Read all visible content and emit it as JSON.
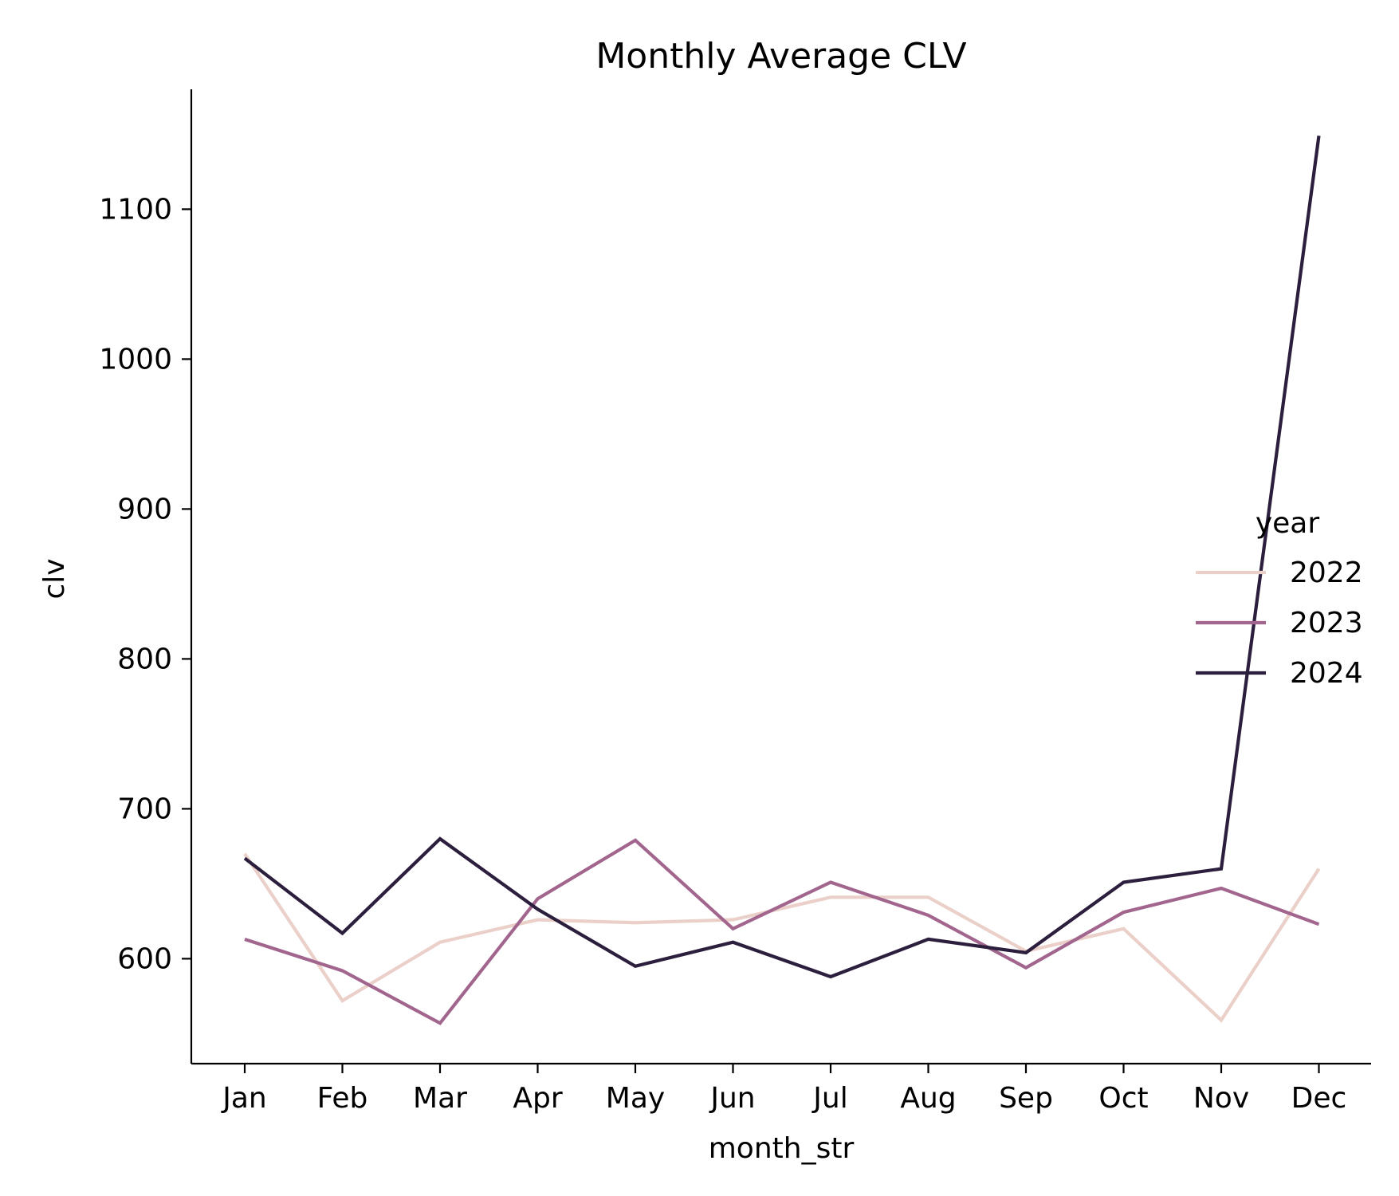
{
  "chart_data": {
    "type": "line",
    "title": "Monthly Average CLV",
    "xlabel": "month_str",
    "ylabel": "clv",
    "categories": [
      "Jan",
      "Feb",
      "Mar",
      "Apr",
      "May",
      "Jun",
      "Jul",
      "Aug",
      "Sep",
      "Oct",
      "Nov",
      "Dec"
    ],
    "ylim": [
      530,
      1180
    ],
    "yticks": [
      600,
      700,
      800,
      900,
      1000,
      1100
    ],
    "grid": false,
    "legend": {
      "title": "year",
      "placement": "right"
    },
    "series": [
      {
        "name": "2022",
        "color": "#ebd0c9",
        "values": [
          670,
          572,
          611,
          626,
          624,
          626,
          641,
          641,
          605,
          620,
          559,
          660
        ]
      },
      {
        "name": "2023",
        "color": "#a2668e",
        "values": [
          613,
          592,
          557,
          640,
          679,
          620,
          651,
          629,
          594,
          631,
          647,
          623
        ]
      },
      {
        "name": "2024",
        "color": "#2c1e3d",
        "values": [
          667,
          617,
          680,
          633,
          595,
          611,
          588,
          613,
          604,
          651,
          660,
          1149
        ]
      }
    ]
  }
}
